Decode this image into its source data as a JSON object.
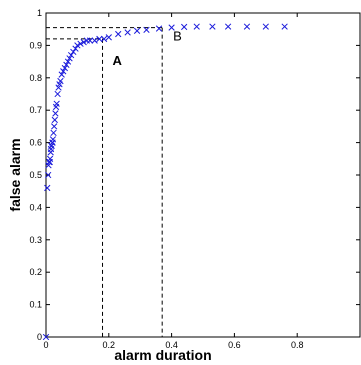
{
  "chart_data": {
    "type": "scatter",
    "xlabel": "alarm duration",
    "ylabel": "false alarm",
    "xlim": [
      0,
      1
    ],
    "ylim": [
      0,
      1
    ],
    "x_ticks": [
      0,
      0.2,
      0.4,
      0.6,
      0.8
    ],
    "y_ticks": [
      0,
      0.1,
      0.2,
      0.3,
      0.4,
      0.5,
      0.6,
      0.7,
      0.8,
      0.9,
      1
    ],
    "x_tick_labels": [
      "0",
      "0.2",
      "0.4",
      "0.6",
      "0.8"
    ],
    "y_tick_labels": [
      "0",
      "0.1",
      "0.2",
      "0.3",
      "0.4",
      "0.5",
      "0.6",
      "0.7",
      "0.8",
      "0.9",
      "1"
    ],
    "grid": false,
    "marker": "x",
    "marker_color": "#1a1adb",
    "series": [
      {
        "x": [
          0.0,
          0.004,
          0.007,
          0.008,
          0.01,
          0.012,
          0.013,
          0.015,
          0.016,
          0.017,
          0.018,
          0.02,
          0.021,
          0.022,
          0.024,
          0.026,
          0.028,
          0.03,
          0.032,
          0.034,
          0.037,
          0.04,
          0.043,
          0.046,
          0.05,
          0.055,
          0.06,
          0.065,
          0.07,
          0.075,
          0.08,
          0.087,
          0.094,
          0.1,
          0.11,
          0.12,
          0.13,
          0.14,
          0.155,
          0.17,
          0.185,
          0.2,
          0.23,
          0.26,
          0.29,
          0.32,
          0.36,
          0.4,
          0.44,
          0.48,
          0.53,
          0.58,
          0.64,
          0.7,
          0.76
        ],
        "y": [
          0.0,
          0.46,
          0.5,
          0.53,
          0.54,
          0.54,
          0.55,
          0.57,
          0.58,
          0.59,
          0.59,
          0.6,
          0.6,
          0.61,
          0.63,
          0.65,
          0.67,
          0.69,
          0.71,
          0.72,
          0.75,
          0.77,
          0.78,
          0.79,
          0.81,
          0.82,
          0.83,
          0.84,
          0.85,
          0.86,
          0.87,
          0.88,
          0.89,
          0.9,
          0.905,
          0.91,
          0.915,
          0.915,
          0.915,
          0.92,
          0.92,
          0.925,
          0.935,
          0.94,
          0.945,
          0.948,
          0.952,
          0.955,
          0.957,
          0.958,
          0.958,
          0.958,
          0.958,
          0.958,
          0.958
        ]
      }
    ],
    "reference_lines": [
      {
        "label": "A",
        "x": 0.18,
        "y": 0.92
      },
      {
        "label": "B",
        "x": 0.37,
        "y": 0.955
      }
    ]
  }
}
